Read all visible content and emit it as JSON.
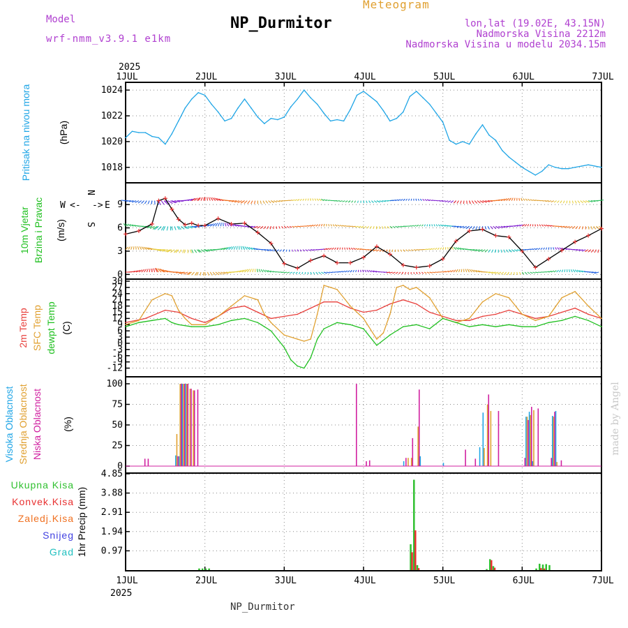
{
  "header": {
    "model_label": "Model",
    "model_name": "wrf-nmm_v3.9.1 e1km",
    "title": "NP_Durmitor",
    "subtitle": "Meteogram",
    "coords": "lon,lat (19.02E, 43.15N)",
    "elevation": "Nadmorska Visina 2212m",
    "model_elevation": "Nadmorska Visina u modelu 2034.15m",
    "footer_station": "NP_Durmitor",
    "watermark": "made by Angel"
  },
  "colors": {
    "pressure": "#1fa5e6",
    "temp2m": "#e8403c",
    "sfc": "#e0a030",
    "dewpt": "#20c020",
    "high_cloud": "#1fa5e6",
    "mid_cloud": "#e0a030",
    "low_cloud": "#d020a0",
    "total_precip": "#30c030",
    "convective": "#e83030",
    "frozen": "#f07020",
    "snow": "#4040e0",
    "hail": "#20c0c0",
    "wind_dir": "#c040d0"
  },
  "chart_data": {
    "x_axis": {
      "year_top": "2025",
      "year_bottom": "2025",
      "tick_labels": [
        "1JUL",
        "2JUL",
        "3JUL",
        "4JUL",
        "5JUL",
        "6JUL",
        "7JUL"
      ],
      "range_hours": [
        0,
        144
      ]
    },
    "panels": [
      {
        "id": "pressure",
        "type": "line",
        "ylabel": "Pritisak na nivou mora",
        "unit": "(hPa)",
        "yticks": [
          "1018",
          "1020",
          "1022",
          "1024"
        ],
        "ylim": [
          1016.8,
          1024.6
        ],
        "series": [
          {
            "name": "Pritisak na nivou mora",
            "x": [
              0,
              2,
              4,
              6,
              8,
              10,
              12,
              14,
              16,
              18,
              20,
              22,
              24,
              26,
              28,
              30,
              32,
              34,
              36,
              38,
              40,
              42,
              44,
              46,
              48,
              50,
              52,
              54,
              56,
              58,
              60,
              62,
              64,
              66,
              68,
              70,
              72,
              74,
              76,
              78,
              80,
              82,
              84,
              86,
              88,
              90,
              92,
              94,
              96,
              98,
              100,
              102,
              104,
              106,
              108,
              110,
              112,
              114,
              116,
              118,
              120,
              122,
              124,
              126,
              128,
              130,
              132,
              134,
              136,
              138,
              140,
              142,
              144
            ],
            "y": [
              1020.3,
              1020.8,
              1020.7,
              1020.7,
              1020.4,
              1020.3,
              1019.8,
              1020.6,
              1021.6,
              1022.6,
              1023.3,
              1023.8,
              1023.6,
              1022.9,
              1022.3,
              1021.6,
              1021.8,
              1022.6,
              1023.3,
              1022.6,
              1021.9,
              1021.4,
              1021.8,
              1021.7,
              1021.9,
              1022.7,
              1023.3,
              1024.0,
              1023.4,
              1022.9,
              1022.2,
              1021.6,
              1021.7,
              1021.6,
              1022.5,
              1023.6,
              1023.9,
              1023.5,
              1023.1,
              1022.4,
              1021.6,
              1021.8,
              1022.3,
              1023.5,
              1023.9,
              1023.4,
              1022.9,
              1022.2,
              1021.5,
              1020.1,
              1019.8,
              1020.0,
              1019.8,
              1020.6,
              1021.3,
              1020.5,
              1020.1,
              1019.3,
              1018.8,
              1018.4,
              1018.0,
              1017.7,
              1017.4,
              1017.7,
              1018.2,
              1018.0,
              1017.9,
              1017.9,
              1018.0,
              1018.1,
              1018.2,
              1018.1,
              1018.0
            ]
          }
        ]
      },
      {
        "id": "wind",
        "type": "line",
        "ylabel": "10m Vjetar Brzina i Pravac",
        "unit": "(m/s)",
        "yticks": [
          "0",
          "3",
          "6",
          "9"
        ],
        "ylim": [
          -0.6,
          11.8
        ],
        "compass": {
          "n": "N",
          "s": "S",
          "e": "E",
          "w": "W",
          "arrows_left": "<-",
          "arrows_right": "->",
          "up": "^",
          "down": "v"
        },
        "series": [
          {
            "name": "10m Vjetar",
            "x": [
              0,
              4,
              8,
              10,
              12,
              14,
              16,
              18,
              20,
              22,
              24,
              28,
              32,
              36,
              40,
              44,
              48,
              52,
              56,
              60,
              64,
              68,
              72,
              76,
              80,
              84,
              88,
              92,
              96,
              100,
              104,
              108,
              112,
              116,
              120,
              124,
              128,
              132,
              136,
              140,
              144
            ],
            "y": [
              5.2,
              5.6,
              6.5,
              9.5,
              9.8,
              8.4,
              7.1,
              6.4,
              6.6,
              6.3,
              6.3,
              7.2,
              6.5,
              6.6,
              5.4,
              4.0,
              1.4,
              0.8,
              1.8,
              2.4,
              1.5,
              1.5,
              2.2,
              3.6,
              2.6,
              1.2,
              0.9,
              1.1,
              2.0,
              4.3,
              5.6,
              5.8,
              5.0,
              4.8,
              3.0,
              0.9,
              2.0,
              3.1,
              4.2,
              5.0,
              5.9
            ]
          }
        ]
      },
      {
        "id": "temperature",
        "type": "line",
        "ylabel_series": [
          "2m Temp",
          "SFC Temp",
          "dewpt Temp"
        ],
        "unit": "(C)",
        "yticks": [
          "-12",
          "-9",
          "-6",
          "-3",
          "0",
          "3",
          "6",
          "9",
          "12",
          "15",
          "18",
          "21",
          "24",
          "27",
          "30"
        ],
        "ylim": [
          -13.5,
          30
        ],
        "series": [
          {
            "name": "2m Temp",
            "x": [
              0,
              6,
              12,
              16,
              20,
              24,
              28,
              32,
              36,
              40,
              44,
              48,
              52,
              56,
              60,
              64,
              68,
              72,
              76,
              80,
              84,
              88,
              92,
              96,
              100,
              104,
              108,
              112,
              116,
              120,
              124,
              128,
              132,
              136,
              140,
              144
            ],
            "y": [
              10,
              12,
              16,
              15,
              12,
              10,
              13,
              17,
              18,
              15,
              12,
              13,
              14,
              17,
              20,
              20,
              17,
              15,
              16,
              19,
              21,
              19,
              15,
              13,
              11,
              11,
              13,
              14,
              16,
              14,
              12,
              13,
              15,
              17,
              14,
              12
            ]
          },
          {
            "name": "SFC Temp",
            "x": [
              0,
              4,
              8,
              12,
              14,
              16,
              18,
              20,
              24,
              28,
              32,
              36,
              40,
              42,
              44,
              48,
              52,
              54,
              56,
              58,
              60,
              62,
              64,
              68,
              72,
              76,
              78,
              80,
              82,
              84,
              86,
              88,
              92,
              96,
              100,
              104,
              108,
              112,
              116,
              120,
              124,
              128,
              132,
              136,
              140,
              144
            ],
            "y": [
              9,
              11,
              21,
              24,
              23,
              16,
              12,
              9,
              9,
              13,
              18,
              23,
              21,
              14,
              10,
              4,
              2,
              1,
              2,
              14,
              28,
              27,
              26,
              18,
              12,
              2,
              5,
              14,
              27,
              28,
              26,
              27,
              22,
              12,
              10,
              12,
              20,
              24,
              22,
              14,
              11,
              13,
              22,
              25,
              18,
              12
            ]
          },
          {
            "name": "dewpt Temp",
            "x": [
              0,
              4,
              8,
              12,
              14,
              16,
              20,
              24,
              28,
              32,
              36,
              40,
              42,
              44,
              48,
              50,
              52,
              54,
              56,
              58,
              60,
              64,
              68,
              72,
              76,
              80,
              84,
              88,
              92,
              96,
              100,
              104,
              108,
              112,
              116,
              120,
              124,
              128,
              132,
              136,
              140,
              144
            ],
            "y": [
              8,
              10,
              11,
              12,
              10,
              9,
              8,
              8,
              9,
              11,
              12,
              10,
              8,
              6,
              -2,
              -8,
              -11,
              -12,
              -7,
              2,
              7,
              10,
              9,
              7,
              -1,
              4,
              8,
              9,
              7,
              12,
              10,
              8,
              9,
              8,
              9,
              8,
              8,
              10,
              11,
              13,
              11,
              8
            ]
          }
        ]
      },
      {
        "id": "cloud",
        "type": "bar",
        "ylabel_series": [
          "Visoka Oblacnost",
          "Srednja Oblacnost",
          "Niska Oblacnost"
        ],
        "unit": "(%)",
        "yticks": [
          "0",
          "25",
          "50",
          "75",
          "100"
        ],
        "ylim": [
          0,
          100
        ],
        "series": [
          {
            "name": "Visoka Oblacnost",
            "x": [
              15,
              16,
              17,
              18,
              84,
              89,
              96,
              107,
              108,
              121,
              122,
              123,
              129,
              130
            ],
            "y": [
              13,
              12,
              100,
              100,
              6,
              12,
              4,
              23,
              65,
              60,
              66,
              6,
              61,
              67
            ]
          },
          {
            "name": "Srednja Oblacnost",
            "x": [
              15,
              16,
              17,
              18,
              19,
              20,
              85,
              86,
              88,
              108,
              109,
              110,
              121,
              122,
              123,
              129,
              130
            ],
            "y": [
              39,
              100,
              100,
              100,
              94,
              92,
              10,
              10,
              48,
              22,
              75,
              67,
              60,
              62,
              68,
              60,
              5
            ]
          },
          {
            "name": "Niska Oblacnost",
            "x": [
              5,
              6,
              15,
              16,
              17,
              18,
              19,
              20,
              21,
              69,
              72,
              73,
              84,
              86,
              88,
              102,
              105,
              109,
              112,
              120,
              121,
              122,
              124,
              128,
              129,
              131
            ],
            "y": [
              9,
              9,
              12,
              100,
              100,
              100,
              94,
              92,
              93,
              100,
              6,
              7,
              10,
              34,
              93,
              20,
              9,
              87,
              67,
              10,
              56,
              72,
              70,
              10,
              66,
              7
            ]
          }
        ]
      },
      {
        "id": "precip",
        "type": "bar",
        "ylabel_series": [
          "Ukupna Kisa",
          "Konvek.Kisa",
          "Zaledj.Kisa",
          "Snijeg",
          "Grad"
        ],
        "unit": "1hr Precip (mm)",
        "yticks": [
          "0.97",
          "1.94",
          "2.91",
          "3.88",
          "4.85"
        ],
        "ylim": [
          0,
          4.85
        ],
        "series": [
          {
            "name": "Ukupna Kisa",
            "x": [
              22,
              23,
              24,
              25,
              86,
              87,
              88,
              109,
              110,
              111,
              124,
              125,
              126,
              127,
              128
            ],
            "y": [
              0.08,
              0.08,
              0.08,
              0.08,
              1.3,
              4.55,
              0.25,
              0.05,
              0.55,
              0.2,
              0.08,
              0.32,
              0.28,
              0.3,
              0.25
            ]
          },
          {
            "name": "Konvek.Kisa",
            "x": [
              86,
              87,
              88,
              110,
              111,
              125,
              126
            ],
            "y": [
              0.9,
              2.0,
              0.1,
              0.5,
              0.12,
              0.1,
              0.08
            ]
          }
        ]
      }
    ]
  }
}
